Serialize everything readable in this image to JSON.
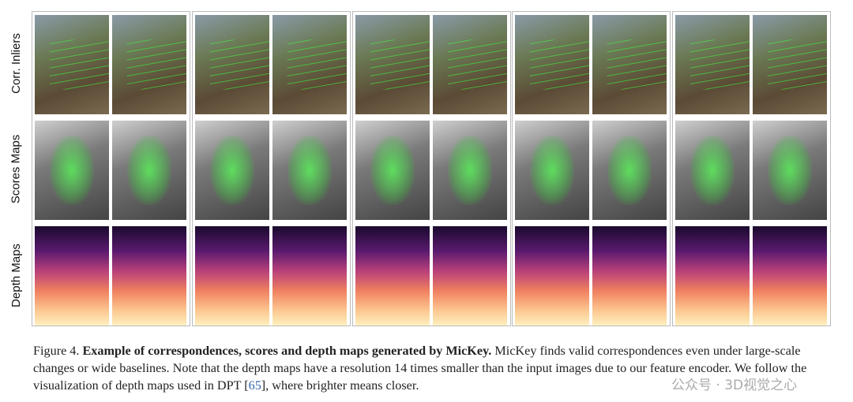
{
  "row_labels": [
    "Corr. Inliers",
    "Scores Maps",
    "Depth Maps"
  ],
  "groups": 5,
  "caption": {
    "prefix": "Figure 4. ",
    "bold": "Example of correspondences, scores and depth maps generated by MicKey.",
    "text1": " MicKey finds valid correspondences even under large-scale changes or wide baselines. Note that the depth maps have a resolution 14 times smaller than the input images due to our feature encoder. We follow the visualization of depth maps used in DPT [",
    "ref": "65",
    "text2": "], where brighter means closer."
  },
  "watermark": "公众号 · 3D视觉之心"
}
